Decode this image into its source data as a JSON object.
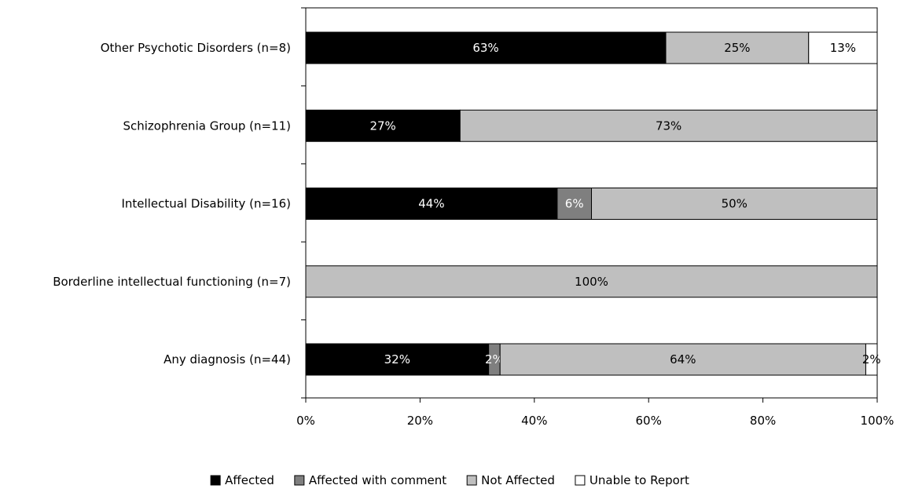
{
  "chart_data": {
    "type": "bar",
    "orientation": "horizontal",
    "stacked": true,
    "categories": [
      "Other Psychotic Disorders (n=8)",
      "Schizophrenia Group (n=11)",
      "Intellectual Disability (n=16)",
      "Borderline intellectual functioning (n=7)",
      "Any diagnosis (n=44)"
    ],
    "series": [
      {
        "name": "Affected",
        "color": "#000000",
        "label_color": "#ffffff",
        "values": [
          63,
          27,
          44,
          0,
          32
        ],
        "labels": [
          "63%",
          "27%",
          "44%",
          "",
          "32%"
        ]
      },
      {
        "name": "Affected with comment",
        "color": "#7f7f7f",
        "label_color": "#ffffff",
        "values": [
          0,
          0,
          6,
          0,
          2
        ],
        "labels": [
          "",
          "",
          "6%",
          "",
          "2%"
        ]
      },
      {
        "name": "Not Affected",
        "color": "#bfbfbf",
        "label_color": "#000000",
        "values": [
          25,
          73,
          50,
          100,
          64
        ],
        "labels": [
          "25%",
          "73%",
          "50%",
          "100%",
          "64%"
        ]
      },
      {
        "name": "Unable to Report",
        "color": "#ffffff",
        "label_color": "#000000",
        "values": [
          13,
          0,
          0,
          0,
          2
        ],
        "labels": [
          "13%",
          "",
          "",
          "",
          "2%"
        ]
      }
    ],
    "xlim": [
      0,
      100
    ],
    "x_ticks": [
      "0%",
      "20%",
      "40%",
      "60%",
      "80%",
      "100%"
    ],
    "grid": false,
    "legend_position": "bottom"
  }
}
